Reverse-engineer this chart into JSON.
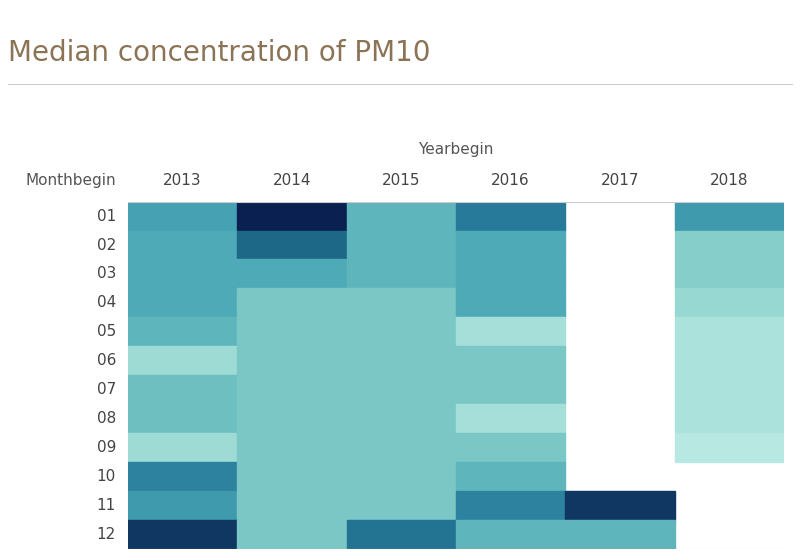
{
  "title": "Median concentration of PM10",
  "xlabel": "Yearbegin",
  "ylabel": "Monthbegin",
  "years": [
    "2013",
    "2014",
    "2015",
    "2016",
    "2017",
    "2018"
  ],
  "months": [
    "01",
    "02",
    "03",
    "04",
    "05",
    "06",
    "07",
    "08",
    "09",
    "10",
    "11",
    "12"
  ],
  "values": [
    [
      30,
      65,
      25,
      40,
      null,
      32
    ],
    [
      28,
      45,
      25,
      28,
      null,
      18
    ],
    [
      28,
      28,
      25,
      28,
      null,
      18
    ],
    [
      28,
      20,
      20,
      28,
      null,
      15
    ],
    [
      25,
      20,
      20,
      13,
      null,
      12
    ],
    [
      14,
      20,
      20,
      20,
      null,
      12
    ],
    [
      22,
      20,
      20,
      20,
      null,
      12
    ],
    [
      22,
      20,
      20,
      13,
      null,
      12
    ],
    [
      14,
      20,
      20,
      20,
      null,
      10
    ],
    [
      38,
      20,
      20,
      25,
      null,
      null
    ],
    [
      32,
      20,
      20,
      38,
      58,
      null
    ],
    [
      58,
      20,
      42,
      25,
      25,
      null
    ]
  ],
  "colormap_colors": [
    "#b8e8e2",
    "#90d4ce",
    "#6cbfbf",
    "#4da8b8",
    "#3590a8",
    "#267898",
    "#1a6080",
    "#154870",
    "#0f3460",
    "#0a2050"
  ],
  "title_color": "#8B7355",
  "label_color": "#555555",
  "header_color": "#444444",
  "background_color": "#ffffff",
  "vmin": 10,
  "vmax": 65
}
